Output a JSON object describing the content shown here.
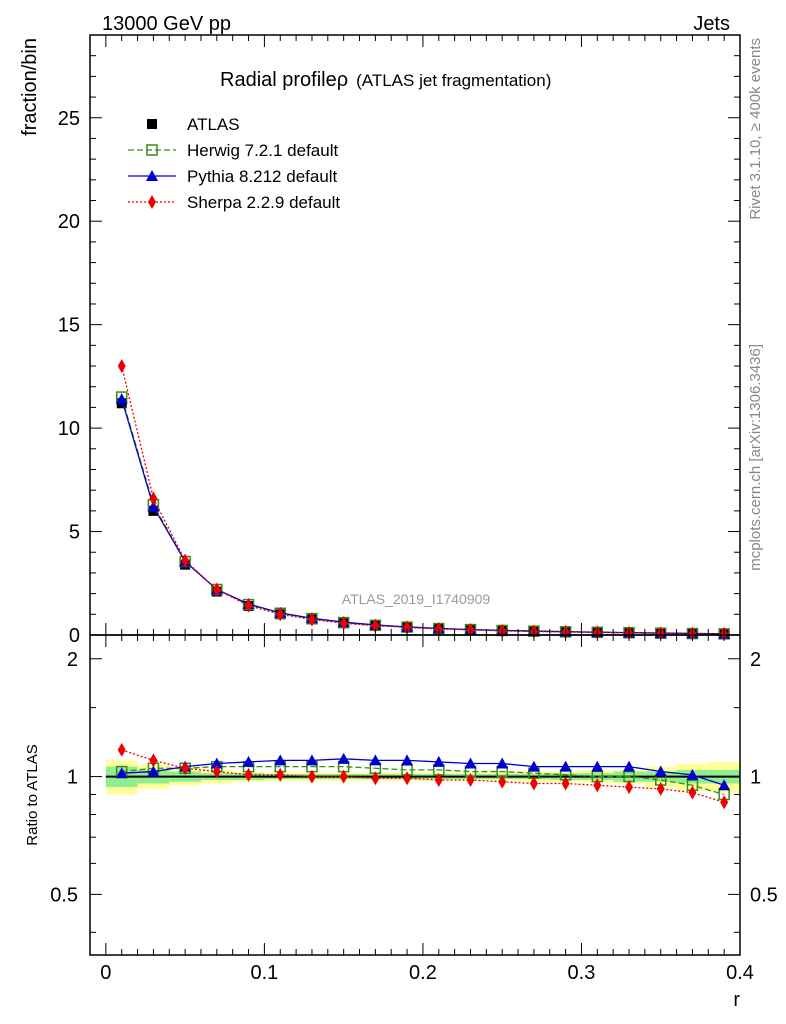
{
  "header": {
    "left": "13000 GeV pp",
    "right": "Jets"
  },
  "side_labels": {
    "rivet": "Rivet 3.1.10, ≥ 400k events",
    "mcplots": "mcplots.cern.ch [arXiv:1306.3436]"
  },
  "chart_data": {
    "type": "line",
    "title_main": "Radial profileρ",
    "title_sub": "(ATLAS jet fragmentation)",
    "watermark": "ATLAS_2019_I1740909",
    "xlabel": "r",
    "ylabel_top": "fraction/bin",
    "ylabel_bottom": "Ratio to ATLAS",
    "xlim": [
      -0.01,
      0.4
    ],
    "ylim_top": [
      0,
      29
    ],
    "ylim_bottom": [
      0.35,
      2.3
    ],
    "x_ticks": [
      0,
      0.1,
      0.2,
      0.3,
      0.4
    ],
    "x_tick_labels": [
      "0",
      "0.1",
      "0.2",
      "0.3",
      "0.4"
    ],
    "y_ticks_top": [
      0,
      5,
      10,
      15,
      20,
      25
    ],
    "y_tick_labels_top": [
      "0",
      "5",
      "10",
      "15",
      "20",
      "25"
    ],
    "y_ticks_bottom": [
      0.5,
      1,
      2
    ],
    "y_tick_labels_bottom": [
      "0.5",
      "1",
      "2"
    ],
    "x": [
      0.01,
      0.03,
      0.05,
      0.07,
      0.09,
      0.11,
      0.13,
      0.15,
      0.17,
      0.19,
      0.21,
      0.23,
      0.25,
      0.27,
      0.29,
      0.31,
      0.33,
      0.35,
      0.37,
      0.39
    ],
    "bin_edges": [
      0,
      0.02,
      0.04,
      0.06,
      0.08,
      0.1,
      0.12,
      0.14,
      0.16,
      0.18,
      0.2,
      0.22,
      0.24,
      0.26,
      0.28,
      0.3,
      0.32,
      0.34,
      0.36,
      0.38,
      0.4
    ],
    "legend": {
      "position": "top-left",
      "entries": [
        "ATLAS",
        "Herwig 7.2.1 default",
        "Pythia 8.212 default",
        "Sherpa 2.2.9 default"
      ]
    },
    "series": [
      {
        "name": "ATLAS",
        "color": "#000000",
        "marker": "square-filled",
        "line": "none",
        "values": [
          11.2,
          6.0,
          3.4,
          2.1,
          1.4,
          1.0,
          0.75,
          0.57,
          0.45,
          0.37,
          0.3,
          0.25,
          0.21,
          0.18,
          0.15,
          0.13,
          0.11,
          0.09,
          0.075,
          0.06
        ],
        "ratio": [
          1,
          1,
          1,
          1,
          1,
          1,
          1,
          1,
          1,
          1,
          1,
          1,
          1,
          1,
          1,
          1,
          1,
          1,
          1,
          1
        ]
      },
      {
        "name": "Herwig 7.2.1 default",
        "color": "#3a8a1a",
        "marker": "square-open",
        "line": "dashed",
        "values": [
          11.5,
          6.3,
          3.55,
          2.2,
          1.47,
          1.05,
          0.79,
          0.6,
          0.47,
          0.38,
          0.31,
          0.26,
          0.22,
          0.185,
          0.155,
          0.13,
          0.11,
          0.088,
          0.071,
          0.054
        ],
        "ratio": [
          1.03,
          1.05,
          1.05,
          1.06,
          1.06,
          1.06,
          1.06,
          1.06,
          1.05,
          1.04,
          1.04,
          1.03,
          1.03,
          1.02,
          1.01,
          1.0,
          1.0,
          0.98,
          0.95,
          0.9
        ]
      },
      {
        "name": "Pythia 8.212 default",
        "color": "#0000cc",
        "marker": "triangle-filled",
        "line": "solid",
        "values": [
          11.4,
          6.2,
          3.55,
          2.2,
          1.5,
          1.07,
          0.81,
          0.62,
          0.49,
          0.39,
          0.32,
          0.26,
          0.22,
          0.19,
          0.16,
          0.14,
          0.115,
          0.093,
          0.077,
          0.058
        ],
        "ratio": [
          1.02,
          1.03,
          1.06,
          1.08,
          1.09,
          1.1,
          1.1,
          1.11,
          1.1,
          1.1,
          1.09,
          1.08,
          1.08,
          1.06,
          1.06,
          1.06,
          1.06,
          1.03,
          1.01,
          0.95
        ]
      },
      {
        "name": "Sherpa 2.2.9 default",
        "color": "#ee0000",
        "marker": "diamond-filled",
        "line": "dotted",
        "values": [
          13.0,
          6.6,
          3.6,
          2.2,
          1.42,
          1.0,
          0.75,
          0.57,
          0.45,
          0.37,
          0.29,
          0.245,
          0.2,
          0.17,
          0.145,
          0.124,
          0.103,
          0.083,
          0.068,
          0.052
        ],
        "ratio": [
          1.17,
          1.1,
          1.05,
          1.03,
          1.01,
          1.01,
          1.0,
          1.0,
          0.99,
          0.99,
          0.98,
          0.98,
          0.97,
          0.96,
          0.96,
          0.95,
          0.94,
          0.93,
          0.91,
          0.86
        ]
      }
    ],
    "uncertainty_bands": {
      "stat_color": "#90ee90",
      "total_color": "#ffff99",
      "stat": [
        0.06,
        0.04,
        0.03,
        0.02,
        0.02,
        0.015,
        0.015,
        0.015,
        0.015,
        0.015,
        0.015,
        0.015,
        0.015,
        0.015,
        0.02,
        0.02,
        0.03,
        0.03,
        0.04,
        0.04
      ],
      "total": [
        0.1,
        0.07,
        0.05,
        0.04,
        0.03,
        0.025,
        0.025,
        0.025,
        0.025,
        0.025,
        0.025,
        0.025,
        0.025,
        0.03,
        0.03,
        0.035,
        0.04,
        0.06,
        0.08,
        0.09
      ]
    }
  }
}
